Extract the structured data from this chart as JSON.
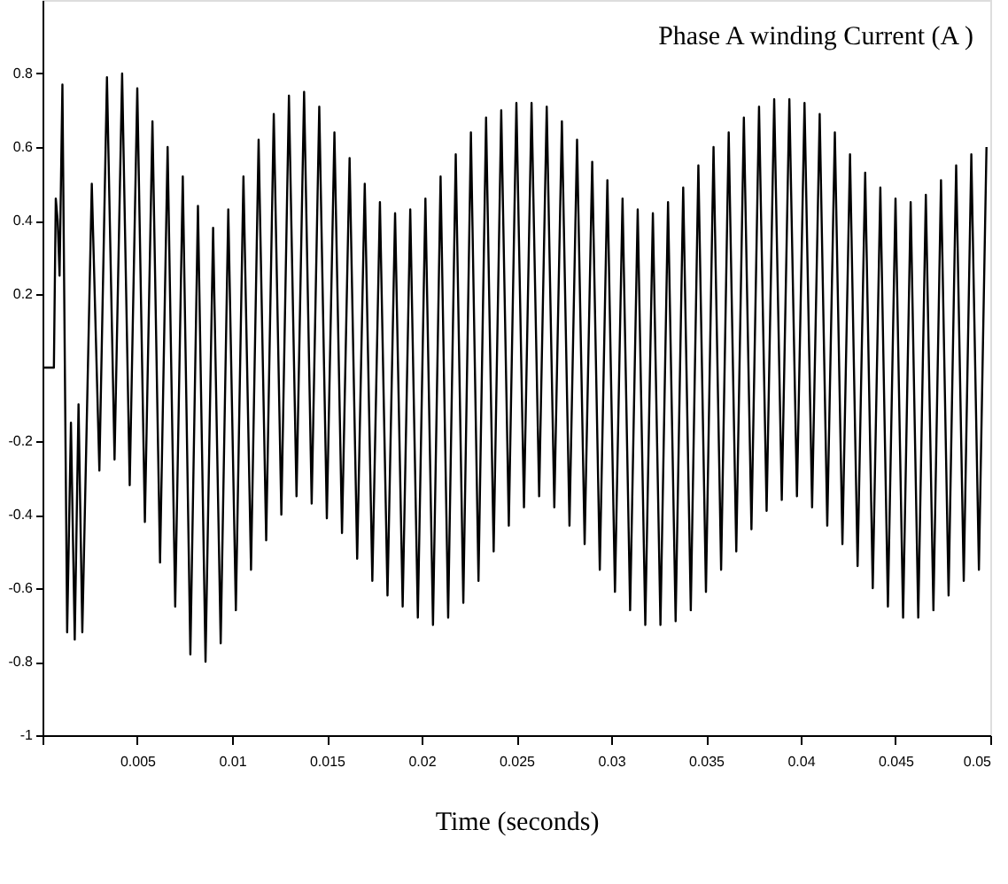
{
  "chart_data": {
    "type": "line",
    "title": "Phase A winding Current (A )",
    "xlabel": "Time (seconds)",
    "xlim": [
      0,
      0.05
    ],
    "xticks": [
      {
        "value": 0,
        "label": null
      },
      0.005,
      0.01,
      0.015,
      0.02,
      0.025,
      0.03,
      0.035,
      0.04,
      0.045,
      0.05
    ],
    "ylim": [
      -1,
      1
    ],
    "yticks": [
      0.8,
      0.6,
      0.4,
      0.2,
      -0.2,
      -0.4,
      -0.6,
      -0.8,
      -1
    ],
    "grid": false,
    "marker": "none",
    "line_style": "solid",
    "series": [
      {
        "color": "#000000",
        "x": [
          0,
          0.0006,
          0.0007,
          0.0008,
          0.0009,
          0.00105,
          0.0013,
          0.0015,
          0.0017,
          0.0019,
          0.0021,
          0.0026,
          0.003,
          0.0034,
          0.0038,
          0.0042,
          0.0046,
          0.005,
          0.0054,
          0.0058,
          0.0062,
          0.0066,
          0.007,
          0.0074,
          0.0078,
          0.0082,
          0.0086,
          0.009,
          0.0094,
          0.0098,
          0.0102,
          0.0106,
          0.011,
          0.0114,
          0.0118,
          0.0122,
          0.0126,
          0.013,
          0.0134,
          0.0138,
          0.0142,
          0.0146,
          0.015,
          0.0154,
          0.0158,
          0.0162,
          0.0166,
          0.017,
          0.0174,
          0.0178,
          0.0182,
          0.0186,
          0.019,
          0.0194,
          0.0198,
          0.0202,
          0.0206,
          0.021,
          0.0214,
          0.0218,
          0.0222,
          0.0226,
          0.023,
          0.0234,
          0.0238,
          0.0242,
          0.0246,
          0.025,
          0.0254,
          0.0258,
          0.0262,
          0.0266,
          0.027,
          0.0274,
          0.0278,
          0.0282,
          0.0286,
          0.029,
          0.0294,
          0.0298,
          0.0302,
          0.0306,
          0.031,
          0.0314,
          0.0318,
          0.0322,
          0.0326,
          0.033,
          0.0334,
          0.0338,
          0.0342,
          0.0346,
          0.035,
          0.0354,
          0.0358,
          0.0362,
          0.0366,
          0.037,
          0.0374,
          0.0378,
          0.0382,
          0.0386,
          0.039,
          0.0394,
          0.0398,
          0.0402,
          0.0406,
          0.041,
          0.0414,
          0.0418,
          0.0422,
          0.0426,
          0.043,
          0.0434,
          0.0438,
          0.0442,
          0.0446,
          0.045,
          0.0454,
          0.0458,
          0.0462,
          0.0466,
          0.047,
          0.0474,
          0.0478,
          0.0482,
          0.0486,
          0.049,
          0.0494,
          0.0498
        ],
        "values": [
          0,
          0,
          0.46,
          0.4,
          0.25,
          0.77,
          -0.72,
          -0.15,
          -0.74,
          -0.1,
          -0.72,
          0.5,
          -0.28,
          0.79,
          -0.25,
          0.8,
          -0.32,
          0.76,
          -0.42,
          0.67,
          -0.53,
          0.6,
          -0.65,
          0.52,
          -0.78,
          0.44,
          -0.8,
          0.38,
          -0.75,
          0.43,
          -0.66,
          0.52,
          -0.55,
          0.62,
          -0.47,
          0.69,
          -0.4,
          0.74,
          -0.35,
          0.75,
          -0.37,
          0.71,
          -0.41,
          0.64,
          -0.45,
          0.57,
          -0.52,
          0.5,
          -0.58,
          0.45,
          -0.62,
          0.42,
          -0.65,
          0.43,
          -0.68,
          0.46,
          -0.7,
          0.52,
          -0.68,
          0.58,
          -0.64,
          0.64,
          -0.58,
          0.68,
          -0.5,
          0.7,
          -0.43,
          0.72,
          -0.38,
          0.72,
          -0.35,
          0.71,
          -0.38,
          0.67,
          -0.43,
          0.62,
          -0.48,
          0.56,
          -0.55,
          0.51,
          -0.61,
          0.46,
          -0.66,
          0.43,
          -0.7,
          0.42,
          -0.7,
          0.45,
          -0.69,
          0.49,
          -0.66,
          0.55,
          -0.61,
          0.6,
          -0.55,
          0.64,
          -0.5,
          0.68,
          -0.44,
          0.71,
          -0.39,
          0.73,
          -0.36,
          0.73,
          -0.35,
          0.72,
          -0.38,
          0.69,
          -0.43,
          0.64,
          -0.48,
          0.58,
          -0.54,
          0.53,
          -0.6,
          0.49,
          -0.65,
          0.46,
          -0.68,
          0.45,
          -0.68,
          0.47,
          -0.66,
          0.51,
          -0.62,
          0.55,
          -0.58,
          0.58,
          -0.55,
          0.6
        ]
      }
    ]
  }
}
